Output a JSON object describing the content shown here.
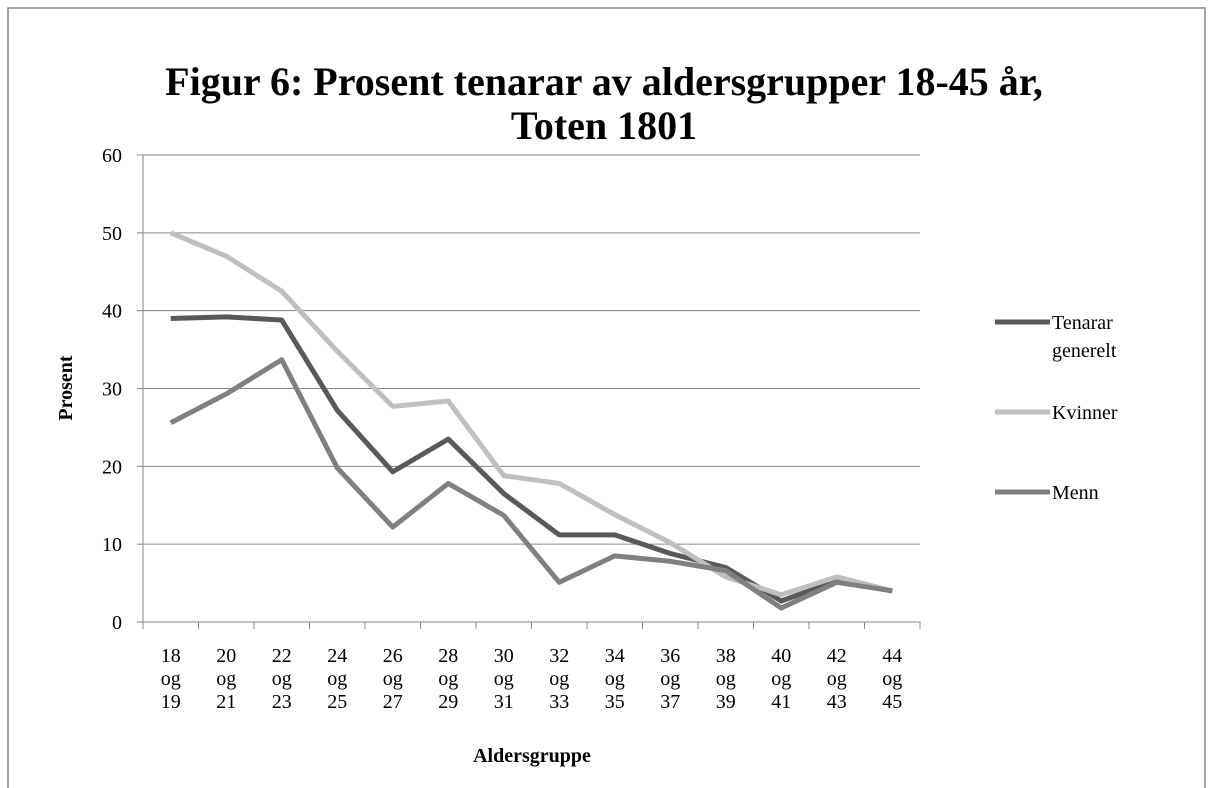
{
  "chart_data": {
    "type": "line",
    "title": "Figur 6: Prosent tenarar av aldersgrupper 18-45 år,\nToten 1801",
    "x_label": "Aldersgruppe",
    "y_label": "Prosent",
    "categories": [
      "18\nog\n19",
      "20\nog\n21",
      "22\nog\n23",
      "24\nog\n25",
      "26\nog\n27",
      "28\nog\n29",
      "30\nog\n31",
      "32\nog\n33",
      "34\nog\n35",
      "36\nog\n37",
      "38\nog\n39",
      "40\nog\n41",
      "42\nog\n43",
      "44\nog\n45"
    ],
    "series": [
      {
        "name": "Tenarar\ngenerelt",
        "color": "#595959",
        "values": [
          39,
          39.2,
          38.8,
          27.2,
          19.3,
          23.5,
          16.5,
          11.2,
          11.2,
          8.8,
          7,
          2.7,
          5.3,
          4
        ]
      },
      {
        "name": "Kvinner",
        "color": "#bfbfbf",
        "values": [
          50,
          47,
          42.5,
          34.8,
          27.7,
          28.4,
          18.8,
          17.8,
          13.8,
          10.2,
          5.8,
          3.5,
          5.8,
          4
        ]
      },
      {
        "name": "Menn",
        "color": "#808080",
        "values": [
          25.6,
          29.3,
          33.7,
          19.8,
          12.2,
          17.8,
          13.7,
          5.1,
          8.5,
          7.8,
          6.6,
          1.8,
          5.1,
          4
        ]
      }
    ],
    "ylim": [
      0,
      60
    ],
    "yticks": [
      0,
      10,
      20,
      30,
      40,
      50,
      60
    ],
    "grid": true,
    "legend": "right"
  }
}
